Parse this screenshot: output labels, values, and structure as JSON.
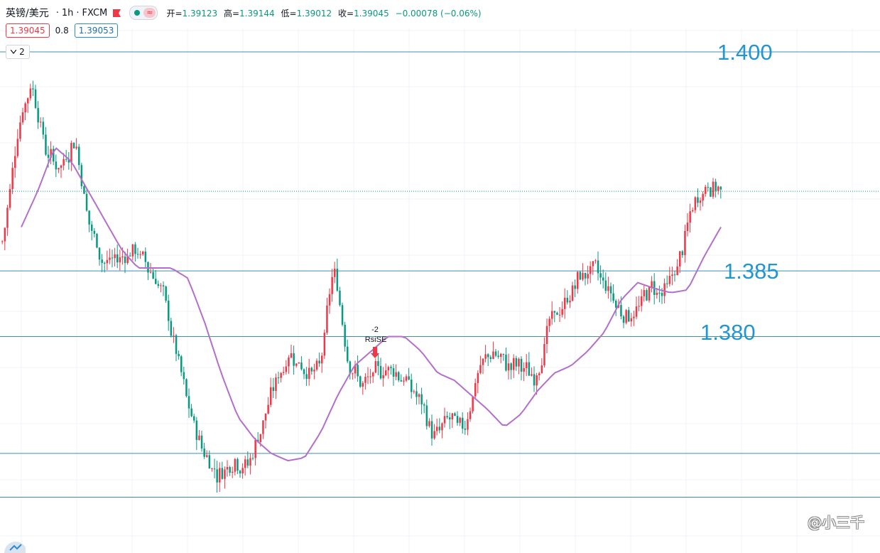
{
  "header": {
    "symbol": "英镑/美元",
    "interval": "1h",
    "exchange": "FXCM",
    "pill_wave": "≈",
    "ohlc": {
      "open_label": "开=",
      "open": "1.39123",
      "high_label": "高=",
      "high": "1.39144",
      "low_label": "低=",
      "low": "1.39012",
      "close_label": "收=",
      "close": "1.39045",
      "change": "−0.00078 (−0.06%)"
    },
    "bid": "1.39045",
    "spread": "0.8",
    "ask": "1.39053",
    "indicator_toggle": "2"
  },
  "colors": {
    "up": "#f23645",
    "down": "#089981",
    "ma": "#b36fcb",
    "level_line": "#3d8fb5",
    "level_text": "#2196d3"
  },
  "annotations": {
    "level_1400": "1.400",
    "level_1385": "1.385",
    "level_1380": "1.380",
    "signal_count": "-2",
    "signal_name": "RsiSE"
  },
  "watermark": "@小三千",
  "chart_data": {
    "type": "candlestick",
    "instrument": "英镑/美元 1h FXCM",
    "ylim": [
      1.369,
      1.401
    ],
    "horizontal_levels": [
      1.4,
      1.385,
      1.3805,
      1.3725,
      1.3695
    ],
    "last_price": 1.39045,
    "price_path": [
      1.387,
      1.395,
      1.398,
      1.393,
      1.392,
      1.3942,
      1.388,
      1.3855,
      1.3858,
      1.3865,
      1.3855,
      1.3838,
      1.3795,
      1.375,
      1.3725,
      1.371,
      1.3722,
      1.3715,
      1.3745,
      1.3775,
      1.3795,
      1.3782,
      1.378,
      1.3855,
      1.379,
      1.377,
      1.378,
      1.3785,
      1.3775,
      1.376,
      1.3735,
      1.375,
      1.374,
      1.378,
      1.3795,
      1.3785,
      1.3785,
      1.3775,
      1.3815,
      1.3825,
      1.3845,
      1.3852,
      1.384,
      1.3822,
      1.382,
      1.384,
      1.3835,
      1.3855,
      1.3895,
      1.391,
      1.3905
    ],
    "moving_average": [
      1.388,
      1.3905,
      1.3935,
      1.3925,
      1.3905,
      1.3885,
      1.3865,
      1.3852,
      1.3852,
      1.3852,
      1.3845,
      1.3815,
      1.378,
      1.375,
      1.3735,
      1.3725,
      1.372,
      1.3722,
      1.374,
      1.3765,
      1.3785,
      1.3795,
      1.3805,
      1.3805,
      1.3795,
      1.378,
      1.3775,
      1.3765,
      1.3755,
      1.3743,
      1.3752,
      1.3768,
      1.378,
      1.3785,
      1.3795,
      1.3808,
      1.383,
      1.3842,
      1.3838,
      1.3835,
      1.3837,
      1.386,
      1.388
    ],
    "signals": [
      {
        "label": "RsiSE",
        "count": "-2",
        "x_index": 23
      }
    ]
  }
}
